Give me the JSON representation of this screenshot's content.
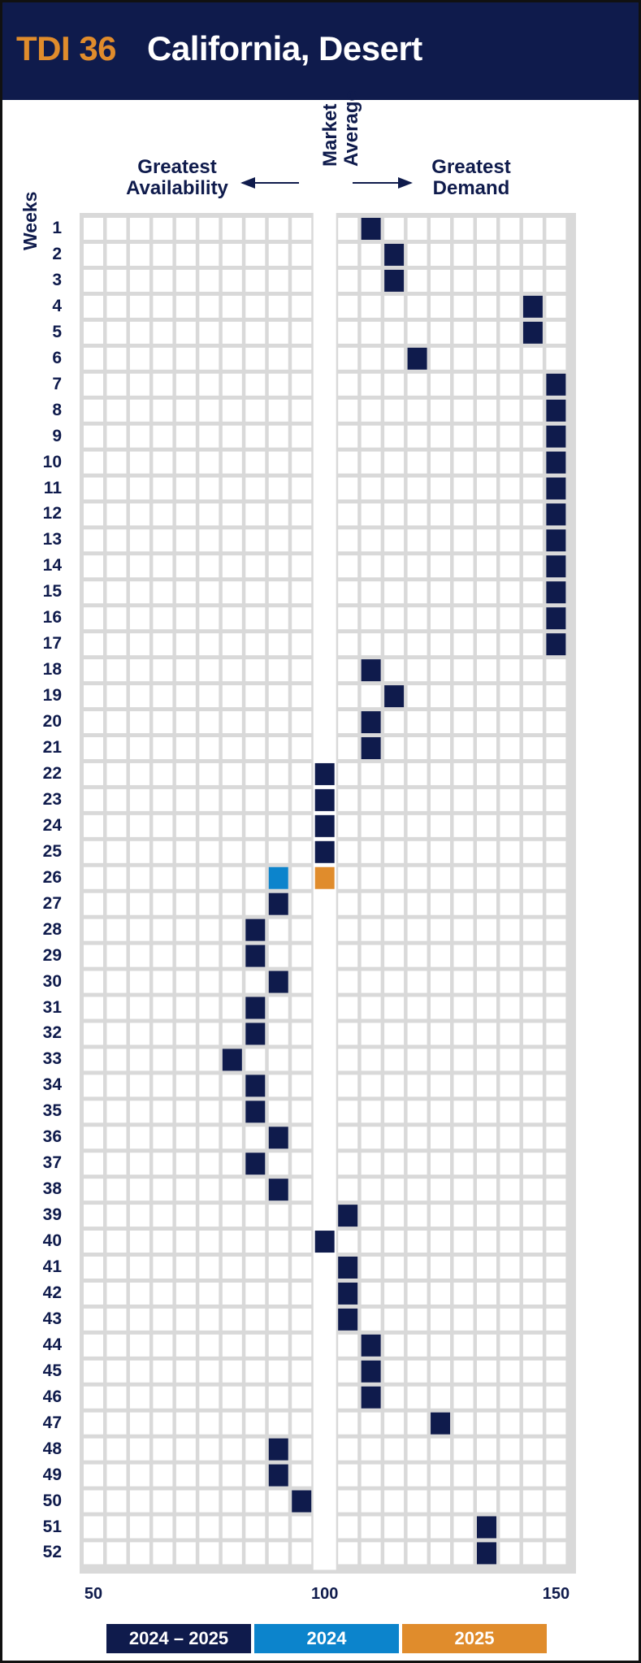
{
  "header": {
    "code": "TDI 36",
    "title": "California, Desert"
  },
  "annotations": {
    "left": [
      "Greatest",
      "Availability"
    ],
    "right": [
      "Greatest",
      "Demand"
    ],
    "middle": [
      "Market",
      "Average"
    ],
    "weeks_label": "Weeks"
  },
  "colors": {
    "navy": "#0f1b4c",
    "blue": "#0c84cc",
    "orange": "#e08c2c",
    "grid": "#d9d9d9"
  },
  "legend": [
    {
      "label": "2024 – 2025",
      "color": "#0f1b4c"
    },
    {
      "label": "2024",
      "color": "#0c84cc"
    },
    {
      "label": "2025",
      "color": "#e08c2c"
    }
  ],
  "chart_data": {
    "type": "heatmap",
    "title": "California, Desert",
    "xlabel": "",
    "ylabel": "Weeks",
    "xlim": [
      50,
      150
    ],
    "x_ticks": [
      50,
      100,
      150
    ],
    "x_annotation_left": "Greatest Availability",
    "x_annotation_right": "Greatest Demand",
    "reference_line": {
      "label": "Market Average",
      "x": 100
    },
    "weeks": [
      1,
      2,
      3,
      4,
      5,
      6,
      7,
      8,
      9,
      10,
      11,
      12,
      13,
      14,
      15,
      16,
      17,
      18,
      19,
      20,
      21,
      22,
      23,
      24,
      25,
      26,
      27,
      28,
      29,
      30,
      31,
      32,
      33,
      34,
      35,
      36,
      37,
      38,
      39,
      40,
      41,
      42,
      43,
      44,
      45,
      46,
      47,
      48,
      49,
      50,
      51,
      52
    ],
    "series": [
      {
        "name": "2024 – 2025",
        "values": [
          110,
          115,
          115,
          145,
          145,
          120,
          150,
          150,
          150,
          150,
          150,
          150,
          150,
          150,
          150,
          150,
          150,
          110,
          115,
          110,
          110,
          100,
          100,
          100,
          100,
          null,
          90,
          85,
          85,
          90,
          85,
          85,
          80,
          85,
          85,
          90,
          85,
          90,
          105,
          100,
          105,
          105,
          105,
          110,
          110,
          110,
          125,
          90,
          90,
          95,
          135,
          135
        ]
      },
      {
        "name": "2024",
        "values": [
          null,
          null,
          null,
          null,
          null,
          null,
          null,
          null,
          null,
          null,
          null,
          null,
          null,
          null,
          null,
          null,
          null,
          null,
          null,
          null,
          null,
          null,
          null,
          null,
          null,
          90,
          null,
          null,
          null,
          null,
          null,
          null,
          null,
          null,
          null,
          null,
          null,
          null,
          null,
          null,
          null,
          null,
          null,
          null,
          null,
          null,
          null,
          null,
          null,
          null,
          null,
          null
        ]
      },
      {
        "name": "2025",
        "values": [
          null,
          null,
          null,
          null,
          null,
          null,
          null,
          null,
          null,
          null,
          null,
          null,
          null,
          null,
          null,
          null,
          null,
          null,
          null,
          null,
          null,
          null,
          null,
          null,
          null,
          100,
          null,
          null,
          null,
          null,
          null,
          null,
          null,
          null,
          null,
          null,
          null,
          null,
          null,
          null,
          null,
          null,
          null,
          null,
          null,
          null,
          null,
          null,
          null,
          null,
          null,
          null
        ]
      }
    ],
    "legend_position": "bottom",
    "grid": true
  }
}
